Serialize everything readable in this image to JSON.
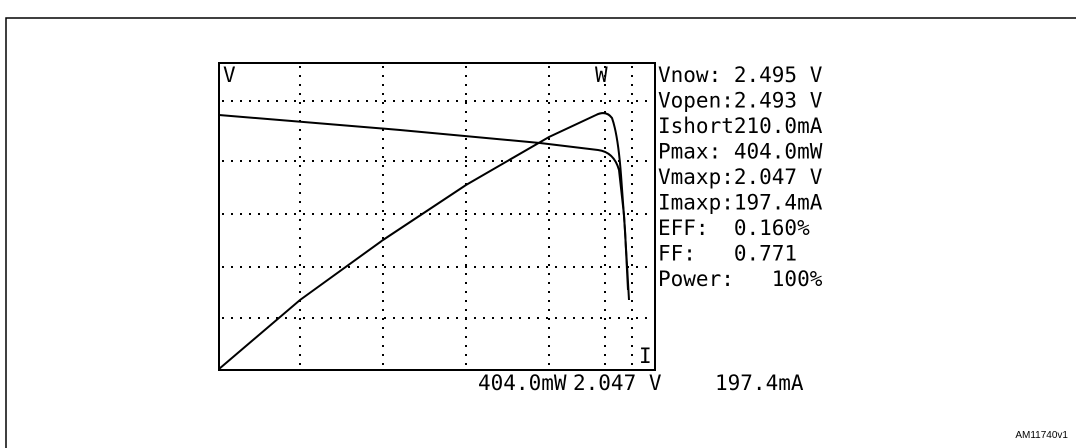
{
  "display": {
    "plot_labels": {
      "voltage": "V",
      "power": "W",
      "current": "I"
    },
    "readouts": [
      "Vnow: 2.495 V",
      "Vopen:2.493 V",
      "Ishort210.0mA",
      "Pmax: 404.0mW",
      "Vmaxp:2.047 V",
      "Imaxp:197.4mA",
      "EFF:  0.160%",
      "FF:   0.771",
      "Power:   100%"
    ],
    "cursor": {
      "power": "404.0mW",
      "voltage": "2.047 V",
      "current": "197.4mA"
    }
  },
  "figure_id": "AM11740v1"
}
